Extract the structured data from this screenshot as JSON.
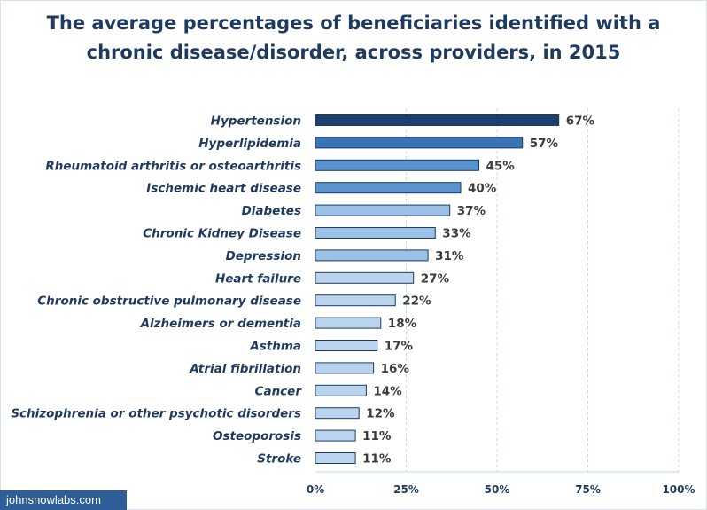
{
  "chart_data": {
    "type": "bar",
    "orientation": "horizontal",
    "title_lines": [
      "The average percentages of beneficiaries identified with a",
      "chronic disease/disorder, across providers, in 2015"
    ],
    "categories": [
      "Hypertension",
      "Hyperlipidemia",
      "Rheumatoid arthritis or osteoarthritis",
      "Ischemic heart disease",
      "Diabetes",
      "Chronic Kidney Disease",
      "Depression",
      "Heart failure",
      "Chronic obstructive pulmonary disease",
      "Alzheimers or dementia",
      "Asthma",
      "Atrial fibrillation",
      "Cancer",
      "Schizophrenia or other psychotic disorders",
      "Osteoporosis",
      "Stroke"
    ],
    "values": [
      67,
      57,
      45,
      40,
      37,
      33,
      31,
      27,
      22,
      18,
      17,
      16,
      14,
      12,
      11,
      11
    ],
    "value_labels": [
      "67%",
      "57%",
      "45%",
      "40%",
      "37%",
      "33%",
      "31%",
      "27%",
      "22%",
      "18%",
      "17%",
      "16%",
      "14%",
      "12%",
      "11%",
      "11%"
    ],
    "bar_colors": [
      "#1d3f6e",
      "#3a75b8",
      "#5b93cf",
      "#5b93cf",
      "#9cc1e6",
      "#9cc1e6",
      "#9cc1e6",
      "#bad3ee",
      "#bad3ee",
      "#bad3ee",
      "#bad3ee",
      "#bad3ee",
      "#bad3ee",
      "#bad3ee",
      "#bad3ee",
      "#bad3ee"
    ],
    "bar_edge_color": "#1f3a5f",
    "x_ticks": [
      0,
      25,
      50,
      75,
      100
    ],
    "x_tick_labels": [
      "0%",
      "25%",
      "50%",
      "75%",
      "100%"
    ],
    "xlim": [
      0,
      100
    ],
    "grid": true,
    "grid_color": "#bcd8e8",
    "legend": false
  },
  "watermark": "johnsnowlabs.com"
}
